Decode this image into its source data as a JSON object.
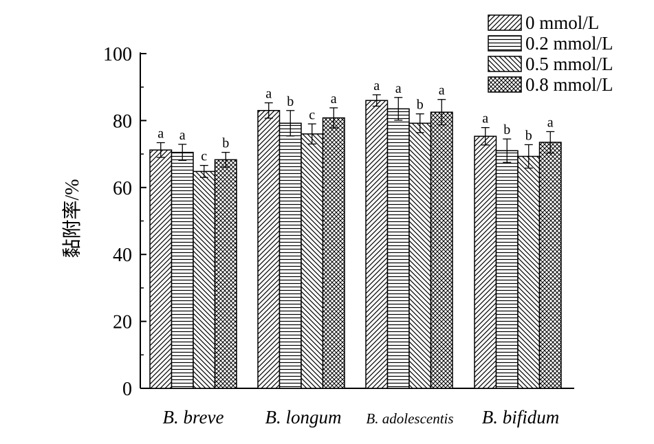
{
  "chart_data": {
    "type": "bar",
    "title": "",
    "xlabel": "",
    "ylabel": "黏附率/%",
    "ylim": [
      0,
      110
    ],
    "yticks": [
      0,
      20,
      40,
      60,
      80,
      100
    ],
    "grid": false,
    "legend_position": "top-right",
    "categories": [
      "B. breve",
      "B. longum",
      "B. adolescentis",
      "B. bifidum"
    ],
    "series": [
      {
        "name": "0 mmol/L",
        "pattern": "diagonal-forward",
        "values": [
          71.2,
          83.0,
          86.0,
          75.3
        ],
        "errors": [
          2.2,
          2.3,
          1.7,
          2.6
        ],
        "labels": [
          "a",
          "a",
          "a",
          "a"
        ]
      },
      {
        "name": "0.2 mmol/L",
        "pattern": "horizontal",
        "values": [
          70.5,
          79.2,
          83.5,
          71.0
        ],
        "errors": [
          2.4,
          3.8,
          3.4,
          3.5
        ],
        "labels": [
          "a",
          "b",
          "a",
          "b"
        ]
      },
      {
        "name": "0.5 mmol/L",
        "pattern": "diagonal-backward",
        "values": [
          64.8,
          76.0,
          79.2,
          69.3
        ],
        "errors": [
          1.8,
          3.0,
          2.8,
          3.5
        ],
        "labels": [
          "c",
          "c",
          "b",
          "b"
        ]
      },
      {
        "name": "0.8 mmol/L",
        "pattern": "crosshatch",
        "values": [
          68.3,
          80.8,
          82.5,
          73.5
        ],
        "errors": [
          2.2,
          3.0,
          3.8,
          3.2
        ],
        "labels": [
          "b",
          "a",
          "a",
          "a"
        ]
      }
    ]
  }
}
